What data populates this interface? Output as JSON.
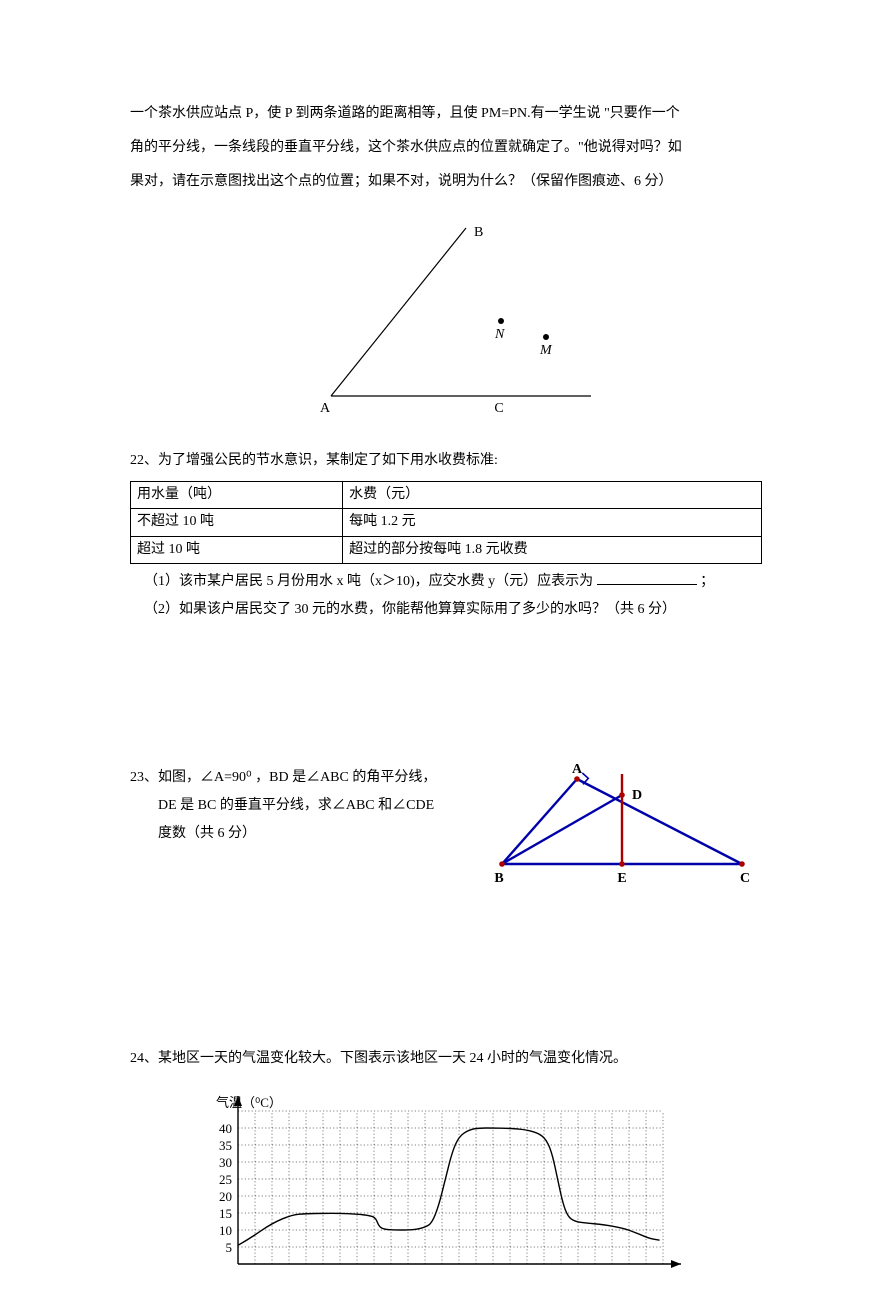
{
  "q21": {
    "p1": "一个茶水供应站点 P，使 P 到两条道路的距离相等，且使 PM=PN.有一学生说 \"只要作一个",
    "p2": "角的平分线，一条线段的垂直平分线，这个茶水供应点的位置就确定了。\"他说得对吗？如",
    "p3": "果对，请在示意图找出这个点的位置；如果不对，说明为什么？（保留作图痕迹、6 分）",
    "figure": {
      "labels": {
        "A": "A",
        "B": "B",
        "C": "C",
        "N": "N",
        "M": "M"
      },
      "stroke": "#000000",
      "fill": "#000000"
    }
  },
  "q22": {
    "header": "22、为了增强公民的节水意识，某制定了如下用水收费标准:",
    "table": {
      "rows": [
        [
          "用水量（吨）",
          "水费（元）"
        ],
        [
          "不超过 10 吨",
          "每吨 1.2 元"
        ],
        [
          "超过 10 吨",
          "超过的部分按每吨 1.8 元收费"
        ]
      ]
    },
    "sub1_a": "（1）该市某户居民 5 月份用水 x 吨（x＞10)，应交水费 y（元）应表示为",
    "sub1_b": "；",
    "sub2": "（2）如果该户居民交了 30 元的水费，你能帮他算算实际用了多少的水吗？（共 6 分）"
  },
  "q23": {
    "line1": "23、如图，∠A=90⁰ ，BD 是∠ABC 的角平分线，",
    "line2": "DE 是 BC 的垂直平分线，求∠ABC 和∠CDE",
    "line3": "度数（共 6 分）",
    "figure": {
      "labels": {
        "A": "A",
        "B": "B",
        "C": "C",
        "D": "D",
        "E": "E"
      },
      "stroke_main": "#0000aa",
      "stroke_red": "#aa0000",
      "fill_dot": "#aa0000"
    }
  },
  "q24": {
    "header": "24、某地区一天的气温变化较大。下图表示该地区一天 24 小时的气温变化情况。",
    "chart": {
      "ylabel": "气温（⁰C）",
      "yticks": [
        5,
        10,
        15,
        20,
        25,
        30,
        35,
        40
      ],
      "grid_color": "#000000",
      "grid_stroke": 0.5,
      "axis_stroke": 1.4,
      "curve_stroke": 1.4,
      "curve_color": "#000000",
      "grid_cols": 25,
      "grid_rows": 9,
      "curve_points": [
        [
          0,
          5.5
        ],
        [
          0.7,
          7.5
        ],
        [
          2,
          12
        ],
        [
          3.2,
          14.5
        ],
        [
          4,
          14.8
        ],
        [
          5,
          14.9
        ],
        [
          6,
          14.9
        ],
        [
          7,
          14.7
        ],
        [
          7.8,
          14.2
        ],
        [
          8.1,
          13.5
        ],
        [
          8.3,
          11
        ],
        [
          8.6,
          10.2
        ],
        [
          9.2,
          10
        ],
        [
          10,
          10
        ],
        [
          10.5,
          10.2
        ],
        [
          11,
          10.8
        ],
        [
          11.4,
          12
        ],
        [
          11.8,
          17
        ],
        [
          12.2,
          25
        ],
        [
          12.6,
          33
        ],
        [
          13,
          37.5
        ],
        [
          13.6,
          39.5
        ],
        [
          14.2,
          40
        ],
        [
          15,
          40
        ],
        [
          16,
          39.9
        ],
        [
          17,
          39.5
        ],
        [
          17.8,
          38.2
        ],
        [
          18.2,
          36
        ],
        [
          18.5,
          32
        ],
        [
          18.8,
          25
        ],
        [
          19.1,
          18
        ],
        [
          19.4,
          14
        ],
        [
          19.8,
          12.5
        ],
        [
          20.5,
          12
        ],
        [
          21.5,
          11.6
        ],
        [
          22.7,
          10.5
        ],
        [
          23.5,
          9
        ],
        [
          24.2,
          7.5
        ],
        [
          24.8,
          7
        ]
      ]
    }
  }
}
